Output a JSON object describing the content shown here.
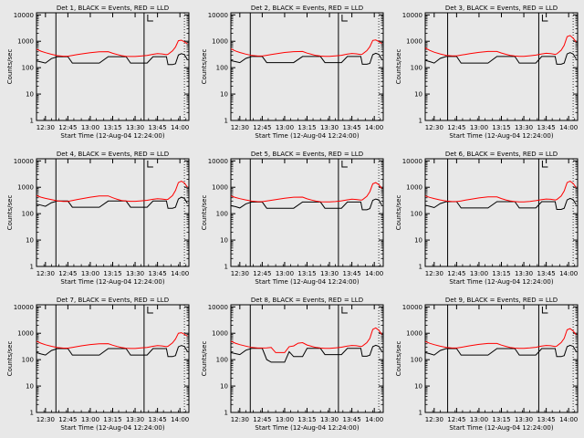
{
  "figure": {
    "background": "#e8e8e8",
    "event_color": "#000000",
    "lld_color": "#ff0000"
  },
  "shared_axes": {
    "xlabel": "Start Time (12-Aug-04 12:24:00)",
    "ylabel": "Counts/sec",
    "x_tick_labels": [
      "12:30",
      "12:45",
      "13:00",
      "13:15",
      "13:30",
      "13:45",
      "14:00"
    ],
    "x_tick_minutes": [
      6,
      21,
      36,
      51,
      66,
      81,
      96
    ],
    "y_tick_labels": [
      "1",
      "10",
      "100",
      "1000",
      "10000"
    ],
    "y_scale": "log",
    "ylim": [
      1,
      12000
    ],
    "xlim_minutes": [
      0,
      102
    ]
  },
  "chart_data": [
    {
      "type": "line",
      "title": "Det 1, BLACK = Events, RED = LLD",
      "x_minutes": [
        0,
        3,
        6,
        10,
        14,
        18,
        21,
        24,
        27,
        30,
        36,
        42,
        48,
        51,
        54,
        57,
        60,
        63,
        66,
        70,
        74,
        78,
        81,
        84,
        87,
        88,
        91,
        93,
        95,
        97,
        99,
        101
      ],
      "series": [
        {
          "name": "Events",
          "values": [
            180,
            165,
            150,
            220,
            260,
            260,
            260,
            150,
            150,
            150,
            150,
            150,
            260,
            260,
            260,
            260,
            260,
            150,
            150,
            150,
            150,
            260,
            260,
            260,
            260,
            130,
            130,
            140,
            300,
            340,
            310,
            200
          ]
        },
        {
          "name": "LLD",
          "values": [
            500,
            420,
            370,
            320,
            285,
            272,
            272,
            290,
            310,
            330,
            370,
            400,
            405,
            350,
            315,
            285,
            270,
            265,
            265,
            275,
            290,
            320,
            340,
            330,
            310,
            320,
            430,
            600,
            1050,
            1100,
            950,
            800
          ]
        }
      ],
      "vlines_minutes": [
        13,
        72
      ]
    },
    {
      "type": "line",
      "title": "Det 2, BLACK = Events, RED = LLD",
      "x_minutes": [
        0,
        3,
        6,
        10,
        14,
        18,
        21,
        24,
        27,
        30,
        36,
        42,
        48,
        51,
        54,
        57,
        60,
        63,
        66,
        70,
        74,
        78,
        81,
        84,
        87,
        88,
        91,
        93,
        95,
        97,
        99,
        101
      ],
      "series": [
        {
          "name": "Events",
          "values": [
            185,
            170,
            155,
            225,
            265,
            265,
            265,
            155,
            155,
            155,
            155,
            155,
            265,
            265,
            265,
            265,
            265,
            155,
            155,
            155,
            155,
            265,
            265,
            265,
            265,
            135,
            135,
            145,
            310,
            350,
            320,
            210
          ]
        },
        {
          "name": "LLD",
          "values": [
            520,
            430,
            375,
            325,
            290,
            275,
            275,
            295,
            315,
            335,
            375,
            405,
            410,
            355,
            320,
            290,
            275,
            270,
            270,
            280,
            295,
            325,
            345,
            335,
            315,
            325,
            440,
            620,
            1080,
            1120,
            970,
            820
          ]
        }
      ],
      "vlines_minutes": [
        13,
        72
      ]
    },
    {
      "type": "line",
      "title": "Det 3, BLACK = Events, RED = LLD",
      "x_minutes": [
        0,
        3,
        6,
        10,
        14,
        18,
        21,
        24,
        27,
        30,
        36,
        42,
        48,
        51,
        54,
        57,
        60,
        63,
        66,
        70,
        74,
        78,
        81,
        84,
        87,
        88,
        91,
        93,
        95,
        97,
        99,
        101
      ],
      "series": [
        {
          "name": "Events",
          "values": [
            190,
            170,
            150,
            225,
            265,
            265,
            265,
            150,
            150,
            150,
            150,
            150,
            265,
            265,
            265,
            265,
            265,
            150,
            150,
            150,
            150,
            265,
            265,
            265,
            265,
            135,
            135,
            150,
            330,
            370,
            330,
            215
          ]
        },
        {
          "name": "LLD",
          "values": [
            560,
            450,
            385,
            330,
            292,
            278,
            278,
            298,
            318,
            340,
            380,
            410,
            412,
            360,
            322,
            292,
            276,
            270,
            270,
            282,
            298,
            330,
            350,
            338,
            318,
            330,
            460,
            700,
            1500,
            1650,
            1300,
            950
          ]
        }
      ],
      "vlines_minutes": [
        15,
        76
      ]
    },
    {
      "type": "line",
      "title": "Det 4, BLACK = Events, RED = LLD",
      "x_minutes": [
        0,
        3,
        6,
        10,
        14,
        18,
        21,
        24,
        27,
        30,
        36,
        42,
        48,
        51,
        54,
        57,
        60,
        63,
        66,
        70,
        74,
        78,
        81,
        84,
        87,
        88,
        91,
        93,
        95,
        97,
        99,
        101
      ],
      "series": [
        {
          "name": "Events",
          "values": [
            230,
            210,
            190,
            260,
            300,
            300,
            300,
            175,
            175,
            175,
            175,
            175,
            300,
            300,
            300,
            300,
            300,
            175,
            175,
            175,
            175,
            300,
            300,
            300,
            300,
            160,
            160,
            175,
            360,
            420,
            380,
            240
          ]
        },
        {
          "name": "LLD",
          "values": [
            480,
            420,
            380,
            340,
            305,
            290,
            290,
            315,
            340,
            365,
            420,
            465,
            470,
            400,
            350,
            315,
            300,
            295,
            295,
            305,
            320,
            350,
            370,
            360,
            340,
            350,
            480,
            750,
            1500,
            1700,
            1450,
            1000
          ]
        }
      ],
      "vlines_minutes": [
        13,
        72
      ]
    },
    {
      "type": "line",
      "title": "Det 5, BLACK = Events, RED = LLD",
      "x_minutes": [
        0,
        3,
        6,
        10,
        14,
        18,
        21,
        24,
        27,
        30,
        36,
        42,
        48,
        51,
        54,
        57,
        60,
        63,
        66,
        70,
        74,
        78,
        81,
        84,
        87,
        88,
        91,
        93,
        95,
        97,
        99,
        101
      ],
      "series": [
        {
          "name": "Events",
          "values": [
            200,
            185,
            165,
            235,
            275,
            275,
            275,
            160,
            160,
            160,
            160,
            160,
            275,
            275,
            275,
            275,
            275,
            160,
            160,
            160,
            160,
            275,
            275,
            275,
            275,
            140,
            140,
            155,
            320,
            360,
            330,
            210
          ]
        },
        {
          "name": "LLD",
          "values": [
            470,
            410,
            370,
            330,
            298,
            284,
            284,
            300,
            320,
            342,
            385,
            420,
            425,
            365,
            328,
            298,
            283,
            278,
            278,
            288,
            305,
            335,
            355,
            345,
            325,
            335,
            455,
            680,
            1350,
            1500,
            1250,
            900
          ]
        }
      ],
      "vlines_minutes": [
        13,
        72
      ]
    },
    {
      "type": "line",
      "title": "Det 6, BLACK = Events, RED = LLD",
      "x_minutes": [
        0,
        3,
        6,
        10,
        14,
        18,
        21,
        24,
        27,
        30,
        36,
        42,
        48,
        51,
        54,
        57,
        60,
        63,
        66,
        70,
        74,
        78,
        81,
        84,
        87,
        88,
        91,
        93,
        95,
        97,
        99,
        101
      ],
      "series": [
        {
          "name": "Events",
          "values": [
            210,
            190,
            170,
            240,
            285,
            285,
            285,
            165,
            165,
            165,
            165,
            165,
            285,
            285,
            285,
            285,
            285,
            165,
            165,
            165,
            165,
            285,
            285,
            285,
            285,
            145,
            145,
            160,
            330,
            380,
            340,
            220
          ]
        },
        {
          "name": "LLD",
          "values": [
            470,
            415,
            372,
            332,
            300,
            286,
            286,
            304,
            325,
            348,
            395,
            430,
            432,
            372,
            332,
            302,
            286,
            280,
            280,
            292,
            310,
            340,
            360,
            350,
            330,
            338,
            465,
            720,
            1500,
            1700,
            1400,
            980
          ]
        }
      ],
      "vlines_minutes": [
        15,
        76
      ]
    },
    {
      "type": "line",
      "title": "Det 7, BLACK = Events, RED = LLD",
      "x_minutes": [
        0,
        3,
        6,
        10,
        14,
        18,
        21,
        24,
        27,
        30,
        36,
        42,
        48,
        51,
        54,
        57,
        60,
        63,
        66,
        70,
        74,
        78,
        81,
        84,
        87,
        88,
        91,
        93,
        95,
        97,
        99,
        101
      ],
      "series": [
        {
          "name": "Events",
          "values": [
            185,
            165,
            150,
            222,
            262,
            262,
            262,
            150,
            150,
            150,
            150,
            150,
            262,
            262,
            262,
            262,
            262,
            150,
            150,
            150,
            150,
            262,
            262,
            262,
            262,
            130,
            130,
            142,
            305,
            345,
            315,
            205
          ]
        },
        {
          "name": "LLD",
          "values": [
            500,
            420,
            368,
            322,
            288,
            274,
            274,
            292,
            312,
            333,
            372,
            402,
            405,
            352,
            316,
            287,
            272,
            266,
            266,
            277,
            292,
            322,
            342,
            332,
            312,
            322,
            432,
            600,
            1000,
            1050,
            920,
            780
          ]
        }
      ],
      "vlines_minutes": [
        13,
        72
      ]
    },
    {
      "type": "line",
      "title": "Det 8, BLACK = Events, RED = LLD",
      "x_minutes": [
        0,
        3,
        6,
        10,
        14,
        18,
        21,
        24,
        27,
        30,
        33,
        36,
        39,
        42,
        45,
        48,
        51,
        54,
        57,
        60,
        63,
        66,
        70,
        74,
        78,
        81,
        84,
        87,
        88,
        91,
        93,
        95,
        97,
        99,
        101
      ],
      "series": [
        {
          "name": "Events",
          "values": [
            185,
            170,
            155,
            228,
            268,
            268,
            268,
            100,
            80,
            80,
            80,
            80,
            200,
            130,
            130,
            130,
            268,
            268,
            268,
            268,
            155,
            155,
            155,
            155,
            268,
            268,
            268,
            268,
            135,
            135,
            148,
            310,
            350,
            320,
            210
          ]
        },
        {
          "name": "LLD",
          "values": [
            500,
            420,
            370,
            325,
            290,
            276,
            276,
            280,
            290,
            185,
            185,
            185,
            310,
            330,
            420,
            440,
            360,
            320,
            290,
            275,
            268,
            268,
            280,
            296,
            326,
            346,
            336,
            316,
            326,
            440,
            640,
            1400,
            1600,
            1300,
            900
          ]
        }
      ],
      "vlines_minutes": [
        13,
        72
      ]
    },
    {
      "type": "line",
      "title": "Det 9, BLACK = Events, RED = LLD",
      "x_minutes": [
        0,
        3,
        6,
        10,
        14,
        18,
        21,
        24,
        27,
        30,
        36,
        42,
        48,
        51,
        54,
        57,
        60,
        63,
        66,
        70,
        74,
        78,
        81,
        84,
        87,
        88,
        91,
        93,
        95,
        97,
        99,
        101
      ],
      "series": [
        {
          "name": "Events",
          "values": [
            185,
            168,
            150,
            222,
            262,
            262,
            262,
            150,
            150,
            150,
            150,
            150,
            262,
            262,
            262,
            262,
            262,
            150,
            150,
            150,
            150,
            262,
            262,
            262,
            262,
            130,
            130,
            142,
            310,
            350,
            320,
            205
          ]
        },
        {
          "name": "LLD",
          "values": [
            490,
            418,
            370,
            324,
            290,
            276,
            276,
            294,
            314,
            336,
            378,
            410,
            412,
            356,
            318,
            288,
            273,
            268,
            268,
            279,
            295,
            326,
            346,
            336,
            316,
            326,
            445,
            640,
            1350,
            1500,
            1220,
            880
          ]
        }
      ],
      "vlines_minutes": [
        15,
        76
      ]
    }
  ]
}
